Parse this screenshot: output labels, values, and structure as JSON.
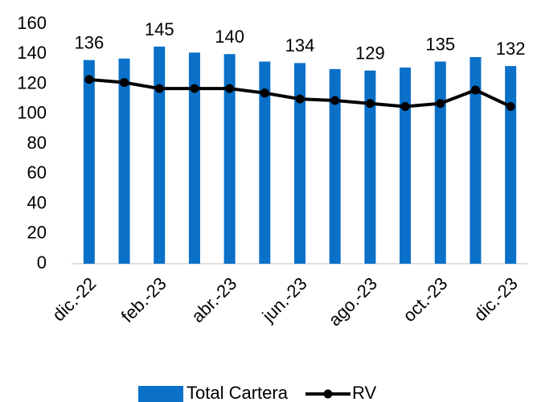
{
  "chart_data": {
    "type": "bar_line",
    "categories": [
      "dic.-22",
      null,
      "feb.-23",
      null,
      "abr.-23",
      null,
      "jun.-23",
      null,
      "ago.-23",
      null,
      "oct.-23",
      null,
      "dic.-23"
    ],
    "series": [
      {
        "name": "Total Cartera",
        "type": "bar",
        "color": "#0a70c8",
        "values": [
          136,
          137,
          145,
          141,
          140,
          135,
          134,
          130,
          129,
          131,
          135,
          138,
          132
        ],
        "value_labels": [
          "136",
          null,
          "145",
          null,
          "140",
          null,
          "134",
          null,
          "129",
          null,
          "135",
          null,
          "132"
        ]
      },
      {
        "name": "RV",
        "type": "line",
        "color": "#000000",
        "values": [
          123,
          121,
          117,
          117,
          117,
          114,
          110,
          109,
          107,
          105,
          107,
          116,
          105
        ]
      }
    ],
    "ylim": [
      0,
      160
    ],
    "yticks": [
      0,
      20,
      40,
      60,
      80,
      100,
      120,
      140,
      160
    ],
    "grid": false,
    "legend": "bottom"
  }
}
